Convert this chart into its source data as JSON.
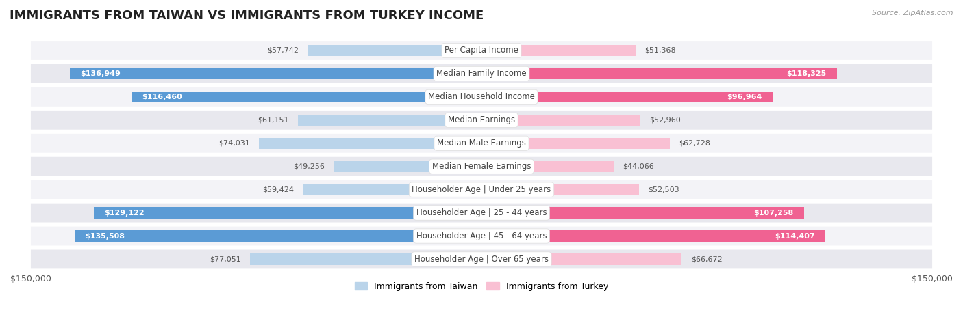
{
  "title": "IMMIGRANTS FROM TAIWAN VS IMMIGRANTS FROM TURKEY INCOME",
  "source": "Source: ZipAtlas.com",
  "categories": [
    "Per Capita Income",
    "Median Family Income",
    "Median Household Income",
    "Median Earnings",
    "Median Male Earnings",
    "Median Female Earnings",
    "Householder Age | Under 25 years",
    "Householder Age | 25 - 44 years",
    "Householder Age | 45 - 64 years",
    "Householder Age | Over 65 years"
  ],
  "taiwan_values": [
    57742,
    136949,
    116460,
    61151,
    74031,
    49256,
    59424,
    129122,
    135508,
    77051
  ],
  "turkey_values": [
    51368,
    118325,
    96964,
    52960,
    62728,
    44066,
    52503,
    107258,
    114407,
    66672
  ],
  "taiwan_color_light": "#bad4ea",
  "taiwan_color_dark": "#5b9bd5",
  "turkey_color_light": "#f9c0d3",
  "turkey_color_dark": "#f06292",
  "taiwan_label": "Immigrants from Taiwan",
  "turkey_label": "Immigrants from Turkey",
  "max_val": 150000,
  "background_color": "#ffffff",
  "row_bg_odd": "#f3f3f7",
  "row_bg_even": "#e8e8ee",
  "title_fontsize": 13,
  "label_fontsize": 8.5,
  "value_fontsize": 8.0,
  "source_fontsize": 8,
  "taiwan_threshold": 100000,
  "turkey_threshold": 90000
}
